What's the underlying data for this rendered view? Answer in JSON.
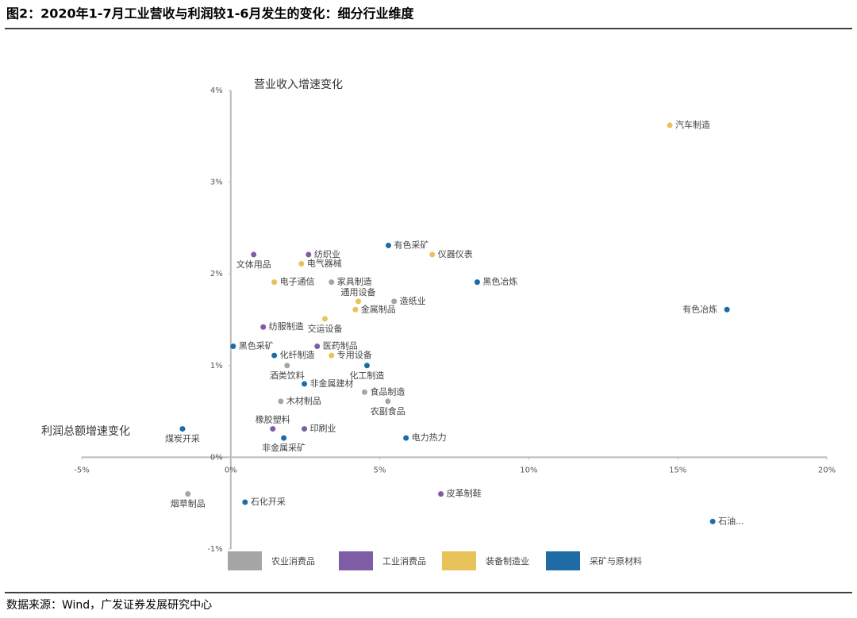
{
  "chart_data": {
    "type": "scatter",
    "title": "图2：2020年1-7月工业营收与利润较1-6月发生的变化：细分行业维度",
    "y_label": "营业收入增速变化",
    "x_label": "利润总额增速变化",
    "source": "数据来源：Wind，广发证券发展研究中心",
    "xlim": [
      -5,
      20
    ],
    "xticks": [
      {
        "value": -5,
        "label": "-5%"
      },
      {
        "value": 0,
        "label": "0%"
      },
      {
        "value": 5,
        "label": "5%"
      },
      {
        "value": 10,
        "label": "10%"
      },
      {
        "value": 15,
        "label": "15%"
      },
      {
        "value": 20,
        "label": "20%"
      }
    ],
    "ylim": [
      -1,
      4
    ],
    "yticks": [
      {
        "value": -1,
        "label": "-1%"
      },
      {
        "value": 0,
        "label": "0%"
      },
      {
        "value": 1,
        "label": "1%"
      },
      {
        "value": 2,
        "label": "2%"
      },
      {
        "value": 3,
        "label": "3%"
      },
      {
        "value": 4,
        "label": "4%"
      }
    ],
    "series": [
      {
        "name": "农业消费品",
        "color": "#a5a5a5",
        "labels": [
          "家具制造",
          "造纸业",
          "酒类饮料",
          "食品制造",
          "农副食品",
          "木材制品",
          "烟草制品"
        ],
        "x": [
          3.38,
          5.48,
          1.89,
          4.49,
          5.27,
          1.68,
          -1.44
        ],
        "values": [
          1.91,
          1.7,
          1.0,
          0.71,
          0.61,
          0.61,
          -0.4
        ]
      },
      {
        "name": "工业消费品",
        "color": "#7e5ca6",
        "labels": [
          "文体用品",
          "纺织业",
          "纺服制造",
          "医药制品",
          "橡胶塑料",
          "印刷业",
          "皮革制鞋"
        ],
        "x": [
          0.77,
          2.61,
          1.09,
          2.9,
          1.41,
          2.47,
          7.05
        ],
        "values": [
          2.21,
          2.21,
          1.42,
          1.21,
          0.31,
          0.31,
          -0.4
        ]
      },
      {
        "name": "装备制造业",
        "color": "#e8c35a",
        "labels": [
          "汽车制造",
          "仪器仪表",
          "电气器械",
          "电子通信",
          "通用设备",
          "金属制品",
          "交运设备",
          "专用设备"
        ],
        "x": [
          14.73,
          6.76,
          2.37,
          1.46,
          4.28,
          4.18,
          3.16,
          3.38
        ],
        "values": [
          3.62,
          2.21,
          2.11,
          1.91,
          1.7,
          1.61,
          1.51,
          1.11
        ]
      },
      {
        "name": "采矿与原材料",
        "color": "#1f6ba6",
        "labels": [
          "有色采矿",
          "黑色冶炼",
          "有色冶炼",
          "黑色采矿",
          "化纤制造",
          "化工制造",
          "非金属建材",
          "煤炭开采",
          "电力热力",
          "非金属采矿",
          "石化开采",
          "石油..."
        ],
        "x": [
          5.29,
          8.27,
          16.65,
          0.08,
          1.46,
          4.57,
          2.47,
          -1.62,
          5.88,
          1.78,
          0.48,
          16.17
        ],
        "values": [
          2.31,
          1.91,
          1.61,
          1.21,
          1.11,
          1.0,
          0.8,
          0.31,
          0.21,
          0.21,
          -0.49,
          -0.7
        ]
      }
    ]
  }
}
